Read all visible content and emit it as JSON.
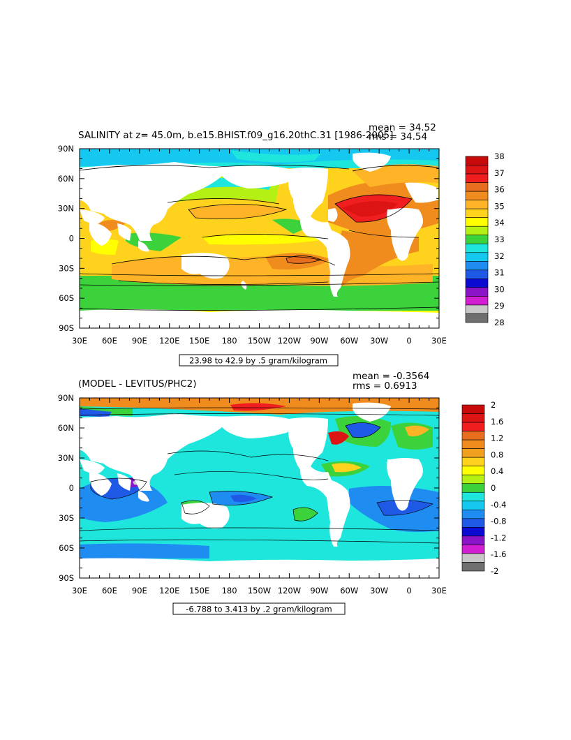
{
  "colors": {
    "salinity_palette": [
      "#6e6e6e",
      "#c8c8c8",
      "#d21ed2",
      "#8c14c8",
      "#0a0ad2",
      "#1e5ae6",
      "#1e8cf0",
      "#14c8f0",
      "#1ee6dc",
      "#3cd23c",
      "#b4f014",
      "#ffff00",
      "#ffd21e",
      "#ffb428",
      "#f08c1e",
      "#e66e1e",
      "#f01e1e",
      "#dc1414",
      "#c80a0a"
    ],
    "diff_palette": [
      "#6e6e6e",
      "#c8c8c8",
      "#d21ed2",
      "#8c14c8",
      "#0a0ad2",
      "#1e5ae6",
      "#1e8cf0",
      "#14c8f0",
      "#1ee6dc",
      "#3cd23c",
      "#b4f014",
      "#ffff00",
      "#ffd21e",
      "#f0a01e",
      "#f08c1e",
      "#e66e1e",
      "#f01e1e",
      "#dc1414",
      "#c80a0a"
    ],
    "land": "#ffffff"
  },
  "panel_top": {
    "title": "SALINITY at z=  45.0m, b.e15.BHIST.f09_g16.20thC.31 [1986-2005]",
    "mean": "mean = 34.52",
    "rms": "rms = 34.54",
    "range_label": "23.98 to 42.9 by .5 gram/kilogram"
  },
  "panel_bottom": {
    "title": "(MODEL - LEVITUS/PHC2)",
    "mean": "mean = -0.3564",
    "rms": "rms = 0.6913",
    "range_label": "-6.788 to 3.413 by .2 gram/kilogram"
  },
  "chart_data": [
    {
      "type": "heatmap",
      "title": "SALINITY at z=  45.0m, b.e15.BHIST.f09_g16.20thC.31 [1986-2005]",
      "x_ticks": [
        "30E",
        "60E",
        "90E",
        "120E",
        "150E",
        "180",
        "150W",
        "120W",
        "90W",
        "60W",
        "30W",
        "0",
        "30E"
      ],
      "y_ticks": [
        "90N",
        "60N",
        "30N",
        "0",
        "30S",
        "60S",
        "90S"
      ],
      "x_range": [
        30,
        390
      ],
      "y_range": [
        -90,
        90
      ],
      "colorbar_labels": [
        "38",
        "37",
        "36",
        "35",
        "34",
        "33",
        "32",
        "31",
        "30",
        "29",
        "28"
      ],
      "contour_interval": 0.5,
      "units": "gram/kilogram",
      "mean": 34.52,
      "rms": 34.54
    },
    {
      "type": "heatmap",
      "title": "(MODEL - LEVITUS/PHC2)",
      "x_ticks": [
        "30E",
        "60E",
        "90E",
        "120E",
        "150E",
        "180",
        "150W",
        "120W",
        "90W",
        "60W",
        "30W",
        "0",
        "30E"
      ],
      "y_ticks": [
        "90N",
        "60N",
        "30N",
        "0",
        "30S",
        "60S",
        "90S"
      ],
      "x_range": [
        30,
        390
      ],
      "y_range": [
        -90,
        90
      ],
      "colorbar_labels": [
        "2",
        "1.6",
        "1.2",
        "0.8",
        "0.4",
        "0",
        "-0.4",
        "-0.8",
        "-1.2",
        "-1.6",
        "-2"
      ],
      "contour_interval": 0.2,
      "units": "gram/kilogram",
      "mean": -0.3564,
      "rms": 0.6913
    }
  ]
}
